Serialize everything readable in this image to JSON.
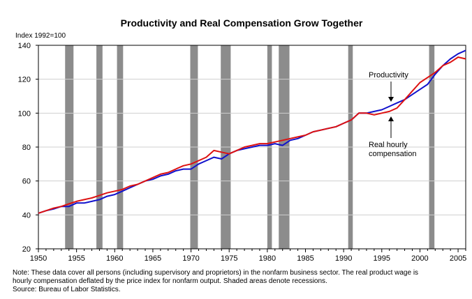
{
  "chart_data": {
    "type": "line",
    "title": "Productivity and Real Compensation Grow Together",
    "ylabel": "Index 1992=100",
    "xlabel": "",
    "xlim": [
      1950,
      2006
    ],
    "ylim": [
      20,
      140
    ],
    "x_ticks": [
      1950,
      1955,
      1960,
      1965,
      1970,
      1975,
      1980,
      1985,
      1990,
      1995,
      2000,
      2005
    ],
    "y_ticks": [
      20,
      40,
      60,
      80,
      100,
      120,
      140
    ],
    "grid": true,
    "recessions": [
      [
        1953.5,
        1954.6
      ],
      [
        1957.6,
        1958.4
      ],
      [
        1960.3,
        1961.1
      ],
      [
        1969.9,
        1970.9
      ],
      [
        1973.9,
        1975.2
      ],
      [
        1980.0,
        1980.6
      ],
      [
        1981.5,
        1982.9
      ],
      [
        1990.6,
        1991.2
      ],
      [
        2001.2,
        2001.9
      ]
    ],
    "series": [
      {
        "name": "Productivity",
        "color": "#1111cc",
        "x": [
          1950,
          1951,
          1952,
          1953,
          1954,
          1955,
          1956,
          1957,
          1958,
          1959,
          1960,
          1961,
          1962,
          1963,
          1964,
          1965,
          1966,
          1967,
          1968,
          1969,
          1970,
          1971,
          1972,
          1973,
          1974,
          1975,
          1976,
          1977,
          1978,
          1979,
          1980,
          1981,
          1982,
          1983,
          1984,
          1985,
          1986,
          1987,
          1988,
          1989,
          1990,
          1991,
          1992,
          1993,
          1994,
          1995,
          1996,
          1997,
          1998,
          1999,
          2000,
          2001,
          2002,
          2003,
          2004,
          2005,
          2006
        ],
        "values": [
          41,
          42.5,
          43.5,
          45,
          45,
          47,
          47,
          48,
          49,
          51,
          52,
          54,
          56,
          58,
          60,
          61,
          63,
          64,
          66,
          67,
          67,
          70,
          72,
          74,
          73,
          76,
          78,
          79,
          80,
          81,
          81,
          82,
          81,
          84,
          85,
          87,
          89,
          90,
          91,
          92,
          94,
          96,
          100,
          100,
          101,
          102,
          104,
          106,
          108,
          111,
          114,
          117,
          123,
          128,
          132,
          135,
          137
        ],
        "label": "Productivity"
      },
      {
        "name": "Real hourly compensation",
        "color": "#dd1111",
        "x": [
          1950,
          1951,
          1952,
          1953,
          1954,
          1955,
          1956,
          1957,
          1958,
          1959,
          1960,
          1961,
          1962,
          1963,
          1964,
          1965,
          1966,
          1967,
          1968,
          1969,
          1970,
          1971,
          1972,
          1973,
          1974,
          1975,
          1976,
          1977,
          1978,
          1979,
          1980,
          1981,
          1982,
          1983,
          1984,
          1985,
          1986,
          1987,
          1988,
          1989,
          1990,
          1991,
          1992,
          1993,
          1994,
          1995,
          1996,
          1997,
          1998,
          1999,
          2000,
          2001,
          2002,
          2003,
          2004,
          2005,
          2006
        ],
        "values": [
          41,
          42.5,
          44,
          45,
          46.5,
          48,
          49,
          50,
          51.5,
          53,
          54,
          55,
          57,
          58,
          60,
          62,
          64,
          65,
          67,
          69,
          70,
          72,
          74,
          78,
          77,
          76,
          78,
          80,
          81,
          82,
          82,
          83,
          84,
          85,
          86,
          87,
          89,
          90,
          91,
          92,
          94,
          96,
          100,
          100,
          99,
          100,
          101,
          103,
          108,
          113,
          118,
          121,
          124,
          128,
          130,
          133,
          132
        ],
        "label": "Real hourly\ncompensation"
      }
    ],
    "notes": [
      "Note: These data cover all persons (including supervisory and proprietors) in the nonfarm business sector.  The real product wage is",
      "hourly compensation deflated by the price index for nonfarm output.  Shaded areas denote recessions.",
      "Source: Bureau of Labor Statistics."
    ]
  }
}
